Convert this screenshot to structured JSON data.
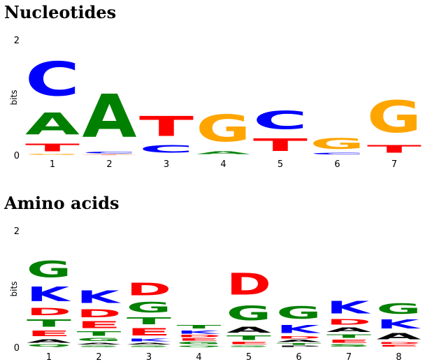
{
  "colors": {
    "A": "#008000",
    "C": "#0000ff",
    "G": "#ffa500",
    "T": "#ff0000",
    "K": "#0000ff",
    "D": "#ff0000",
    "E": "#ff0000",
    "Q": "#008000",
    "S": "#008000",
    "R": "#0000ff",
    "P": "#000000",
    "gG": "#008000",
    "gT": "#008000",
    "gA": "#000000"
  },
  "chart_data": [
    {
      "type": "sequence-logo",
      "title": "Nucleotides",
      "ylabel": "bits",
      "ylim": [
        0,
        2
      ],
      "yticks": [
        "0",
        "2"
      ],
      "positions": [
        "1",
        "2",
        "3",
        "4",
        "5",
        "6",
        "7"
      ],
      "stacks": [
        [
          {
            "letter": "G",
            "height": 0.02,
            "color": "G"
          },
          {
            "letter": "T",
            "height": 0.22,
            "color": "T"
          },
          {
            "letter": "A",
            "height": 0.6,
            "color": "A"
          },
          {
            "letter": "C",
            "height": 0.95,
            "color": "C"
          }
        ],
        [
          {
            "letter": "T",
            "height": 0.01,
            "color": "T"
          },
          {
            "letter": "G",
            "height": 0.01,
            "color": "G"
          },
          {
            "letter": "C",
            "height": 0.05,
            "color": "C"
          },
          {
            "letter": "A",
            "height": 1.2,
            "color": "A"
          }
        ],
        [
          {
            "letter": "C",
            "height": 0.22,
            "color": "C"
          },
          {
            "letter": "T",
            "height": 0.55,
            "color": "T"
          }
        ],
        [
          {
            "letter": "A",
            "height": 0.08,
            "color": "A"
          },
          {
            "letter": "G",
            "height": 0.75,
            "color": "G"
          }
        ],
        [
          {
            "letter": "T",
            "height": 0.35,
            "color": "T"
          },
          {
            "letter": "C",
            "height": 0.5,
            "color": "C"
          }
        ],
        [
          {
            "letter": "C",
            "height": 0.05,
            "color": "C"
          },
          {
            "letter": "G",
            "height": 0.3,
            "color": "G"
          }
        ],
        [
          {
            "letter": "T",
            "height": 0.22,
            "color": "T"
          },
          {
            "letter": "G",
            "height": 0.88,
            "color": "G"
          }
        ]
      ]
    },
    {
      "type": "sequence-logo",
      "title": "Amino acids",
      "ylabel": "bits",
      "ylim": [
        0,
        2
      ],
      "yticks": [
        "0",
        "2"
      ],
      "positions": [
        "1",
        "2",
        "3",
        "4",
        "5",
        "6",
        "7",
        "8"
      ],
      "stacks": [
        [
          {
            "letter": "Q",
            "height": 0.06,
            "color": "Q"
          },
          {
            "letter": "A",
            "height": 0.1,
            "color": "gA"
          },
          {
            "letter": "E",
            "height": 0.15,
            "color": "E"
          },
          {
            "letter": "T",
            "height": 0.2,
            "color": "gT"
          },
          {
            "letter": "D",
            "height": 0.2,
            "color": "D"
          },
          {
            "letter": "K",
            "height": 0.4,
            "color": "K"
          },
          {
            "letter": "G",
            "height": 0.45,
            "color": "gG"
          }
        ],
        [
          {
            "letter": "S",
            "height": 0.04,
            "color": "S"
          },
          {
            "letter": "A",
            "height": 0.05,
            "color": "gA"
          },
          {
            "letter": "G",
            "height": 0.08,
            "color": "gG"
          },
          {
            "letter": "T",
            "height": 0.12,
            "color": "gT"
          },
          {
            "letter": "E",
            "height": 0.18,
            "color": "E"
          },
          {
            "letter": "D",
            "height": 0.22,
            "color": "D"
          },
          {
            "letter": "K",
            "height": 0.35,
            "color": "K"
          }
        ],
        [
          {
            "letter": "S",
            "height": 0.04,
            "color": "S"
          },
          {
            "letter": "A",
            "height": 0.05,
            "color": "gA"
          },
          {
            "letter": "K",
            "height": 0.07,
            "color": "K"
          },
          {
            "letter": "E",
            "height": 0.2,
            "color": "E"
          },
          {
            "letter": "T",
            "height": 0.18,
            "color": "gT"
          },
          {
            "letter": "G",
            "height": 0.28,
            "color": "gG"
          },
          {
            "letter": "D",
            "height": 0.35,
            "color": "D"
          }
        ],
        [
          {
            "letter": "Q",
            "height": 0.04,
            "color": "Q"
          },
          {
            "letter": "G",
            "height": 0.06,
            "color": "gG"
          },
          {
            "letter": "E",
            "height": 0.06,
            "color": "E"
          },
          {
            "letter": "D",
            "height": 0.06,
            "color": "D"
          },
          {
            "letter": "K",
            "height": 0.08,
            "color": "K"
          },
          {
            "letter": "T",
            "height": 0.1,
            "color": "gT"
          }
        ],
        [
          {
            "letter": "S",
            "height": 0.04,
            "color": "S"
          },
          {
            "letter": "E",
            "height": 0.06,
            "color": "E"
          },
          {
            "letter": "T",
            "height": 0.12,
            "color": "gT"
          },
          {
            "letter": "A",
            "height": 0.16,
            "color": "gA"
          },
          {
            "letter": "G",
            "height": 0.4,
            "color": "gG"
          },
          {
            "letter": "D",
            "height": 0.6,
            "color": "D"
          }
        ],
        [
          {
            "letter": "P",
            "height": 0.03,
            "color": "P"
          },
          {
            "letter": "T",
            "height": 0.05,
            "color": "gT"
          },
          {
            "letter": "A",
            "height": 0.06,
            "color": "gA"
          },
          {
            "letter": "D",
            "height": 0.06,
            "color": "D"
          },
          {
            "letter": "K",
            "height": 0.22,
            "color": "K"
          },
          {
            "letter": "G",
            "height": 0.35,
            "color": "gG"
          }
        ],
        [
          {
            "letter": "S",
            "height": 0.06,
            "color": "S"
          },
          {
            "letter": "E",
            "height": 0.08,
            "color": "E"
          },
          {
            "letter": "T",
            "height": 0.1,
            "color": "gT"
          },
          {
            "letter": "A",
            "height": 0.12,
            "color": "gA"
          },
          {
            "letter": "D",
            "height": 0.15,
            "color": "D"
          },
          {
            "letter": "K",
            "height": 0.35,
            "color": "K"
          }
        ],
        [
          {
            "letter": "E",
            "height": 0.05,
            "color": "E"
          },
          {
            "letter": "D",
            "height": 0.05,
            "color": "D"
          },
          {
            "letter": "A",
            "height": 0.17,
            "color": "gA"
          },
          {
            "letter": "K",
            "height": 0.25,
            "color": "K"
          },
          {
            "letter": "G",
            "height": 0.28,
            "color": "gG"
          }
        ]
      ]
    }
  ]
}
